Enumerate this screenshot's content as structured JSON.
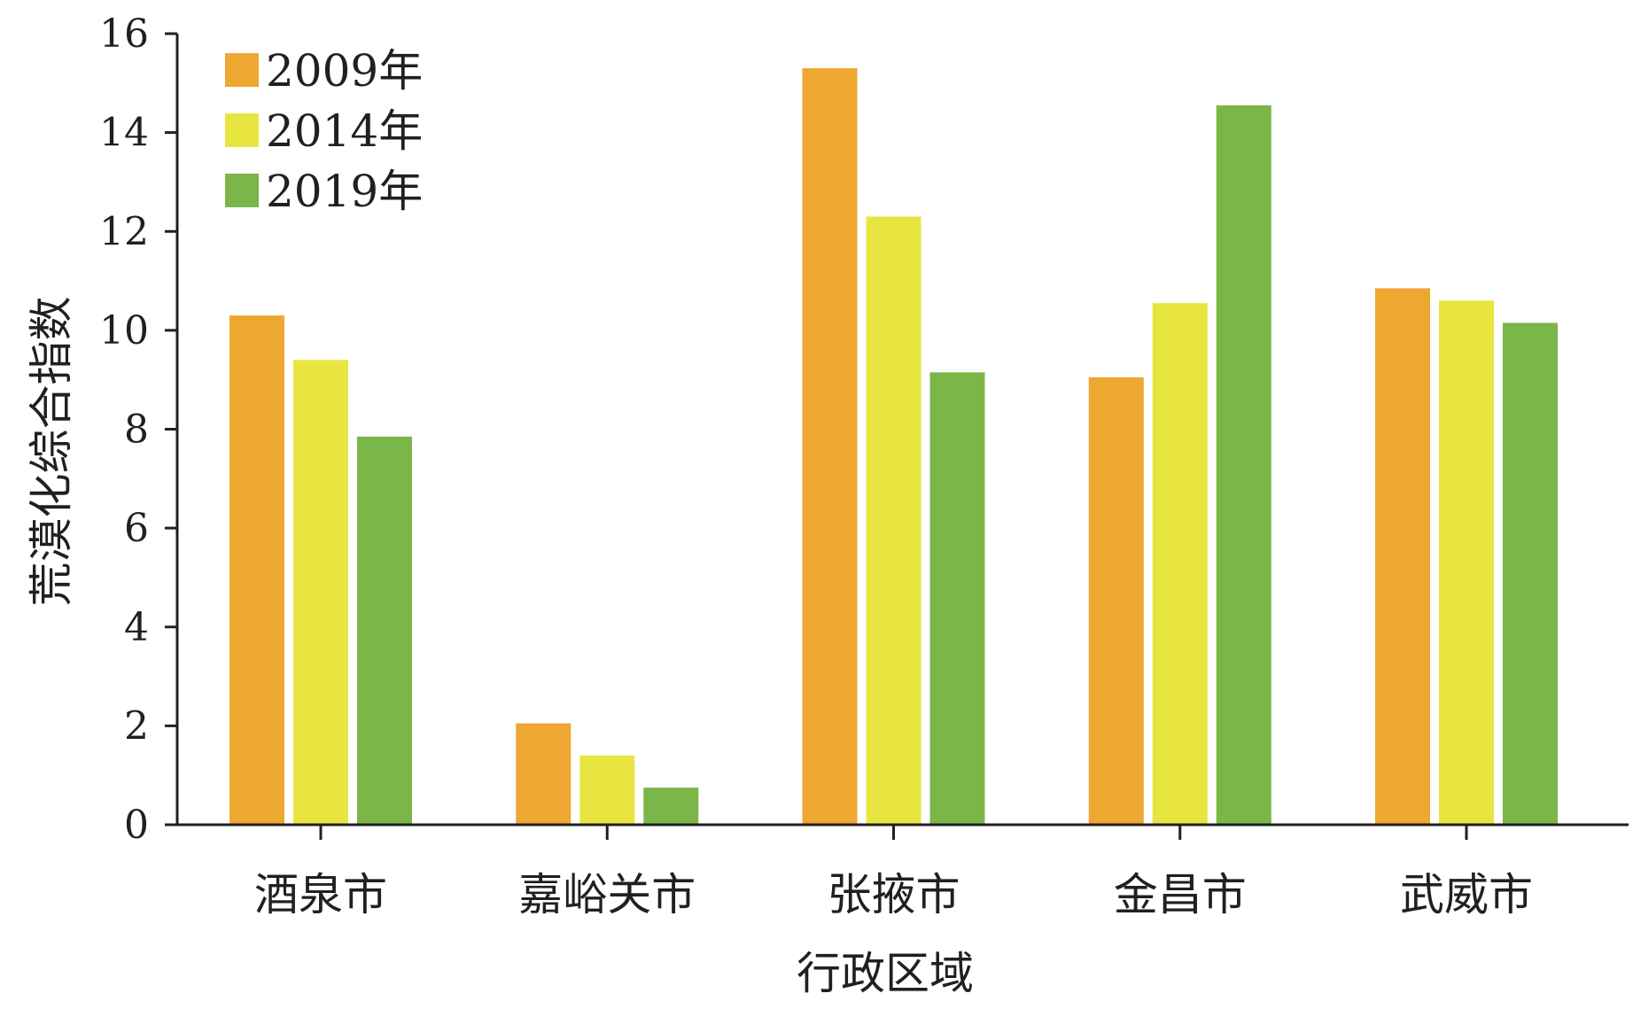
{
  "chart_data": {
    "type": "bar",
    "title": "",
    "xlabel": "行政区域",
    "ylabel": "荒漠化综合指数",
    "categories": [
      "酒泉市",
      "嘉峪关市",
      "张掖市",
      "金昌市",
      "武威市"
    ],
    "series": [
      {
        "name": "2009年",
        "color": "#eea731",
        "values": [
          10.3,
          2.05,
          15.3,
          9.05,
          10.85
        ]
      },
      {
        "name": "2014年",
        "color": "#e8e540",
        "values": [
          9.4,
          1.4,
          12.3,
          10.55,
          10.6
        ]
      },
      {
        "name": "2019年",
        "color": "#7ab648",
        "values": [
          7.85,
          0.75,
          9.15,
          14.55,
          10.15
        ]
      }
    ],
    "ylim": [
      0,
      16
    ],
    "yticks": [
      0,
      2,
      4,
      6,
      8,
      10,
      12,
      14,
      16
    ],
    "grid": false,
    "legend_position": "top-left"
  }
}
